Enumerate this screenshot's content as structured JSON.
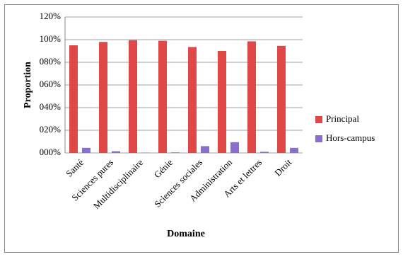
{
  "chart_data": {
    "type": "bar",
    "x_label": "Domaine",
    "y_label": "Proportion",
    "categories": [
      "Santé",
      "Sciences pures",
      "Multidisciplinaire",
      "Génie",
      "Sciences sociales",
      "Administration",
      "Arts et lettres",
      "Droit"
    ],
    "series": [
      {
        "name": "Principal",
        "color": "#e04848",
        "values": [
          95,
          98,
          99.5,
          99,
          93.5,
          90,
          98.5,
          94.5
        ]
      },
      {
        "name": "Hors-campus",
        "color": "#8a6fcf",
        "values": [
          4.5,
          1.5,
          0.3,
          0.5,
          6,
          9.5,
          1,
          4.5
        ]
      }
    ],
    "ylim": [
      0,
      120
    ],
    "yticks": [
      {
        "value": 0,
        "label": "000%"
      },
      {
        "value": 20,
        "label": "020%"
      },
      {
        "value": 40,
        "label": "040%"
      },
      {
        "value": 60,
        "label": "060%"
      },
      {
        "value": 80,
        "label": "080%"
      },
      {
        "value": 100,
        "label": "100%"
      },
      {
        "value": 120,
        "label": "120%"
      }
    ],
    "grid": true,
    "legend": "right"
  }
}
